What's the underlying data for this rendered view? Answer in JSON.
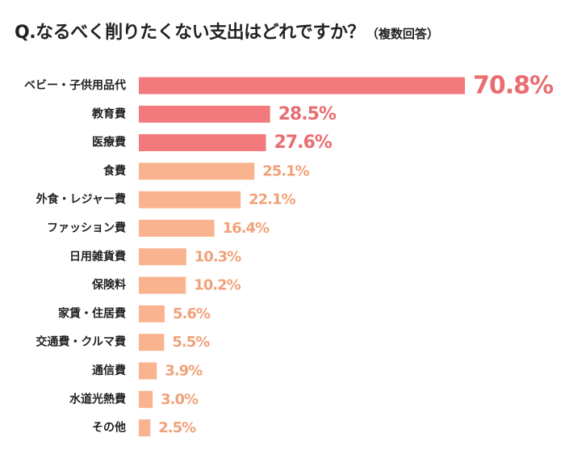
{
  "title": {
    "prefix": "Q.",
    "text": "なるべく削りたくない支出はどれですか？",
    "note": "（複数回答）"
  },
  "colors": {
    "top": "#f27a7d",
    "rest": "#f9b48f",
    "top_label": "#e96e72",
    "rest_label": "#f0a27a"
  },
  "chart_data": {
    "type": "bar",
    "orientation": "horizontal",
    "categories": [
      "ベビー・子供用品代",
      "教育費",
      "医療費",
      "食費",
      "外食・レジャー費",
      "ファッション費",
      "日用雑貨費",
      "保険料",
      "家賃・住居費",
      "交通費・クルマ費",
      "通信費",
      "水道光熱費",
      "その他"
    ],
    "values": [
      70.8,
      28.5,
      27.6,
      25.1,
      22.1,
      16.4,
      10.3,
      10.2,
      5.6,
      5.5,
      3.9,
      3.0,
      2.5
    ],
    "value_labels": [
      "70.8%",
      "28.5%",
      "27.6%",
      "25.1%",
      "22.1%",
      "16.4%",
      "10.3%",
      "10.2%",
      "5.6%",
      "5.5%",
      "3.9%",
      "3.0%",
      "2.5%"
    ],
    "highlight_top_n": 3,
    "grid": false,
    "legend": "none"
  }
}
